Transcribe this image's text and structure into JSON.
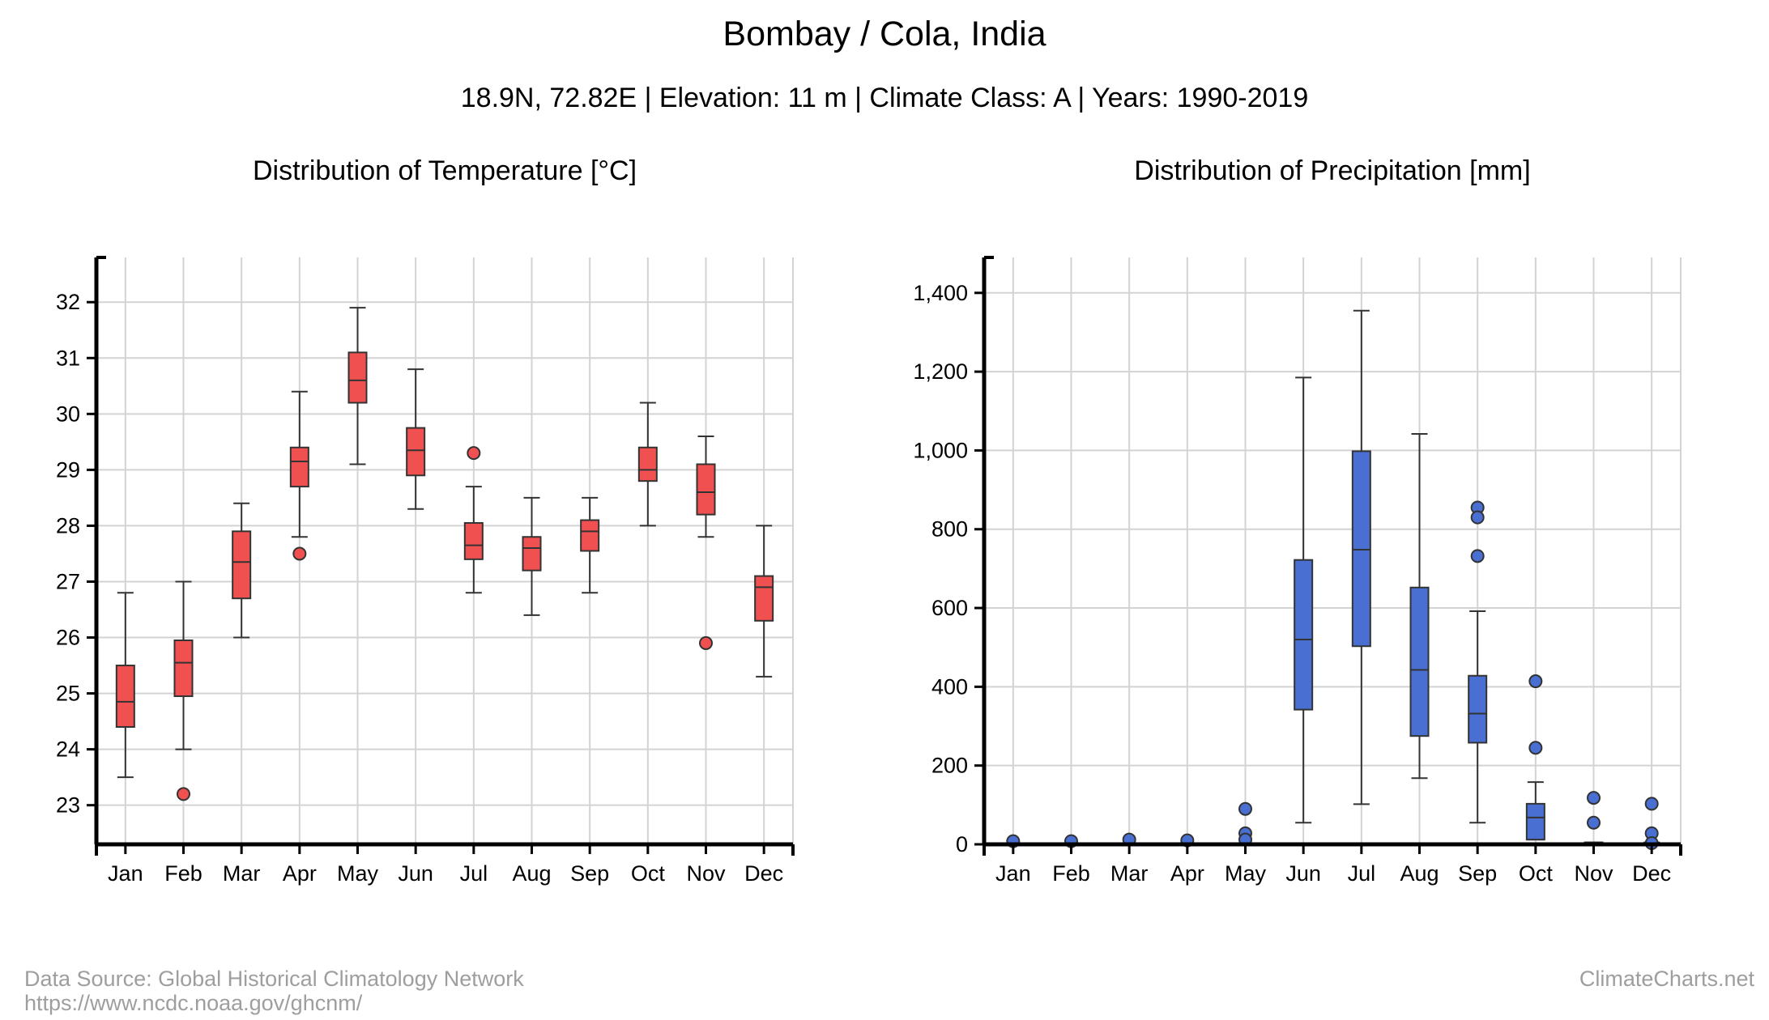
{
  "header": {
    "title": "Bombay / Cola, India",
    "subtitle": "18.9N, 72.82E | Elevation: 11 m | Climate Class: A | Years: 1990-2019"
  },
  "footer": {
    "source_line1": "Data Source: Global Historical Climatology Network",
    "source_line2": "https://www.ncdc.noaa.gov/ghcnm/",
    "brand": "ClimateCharts.net"
  },
  "chart_data": [
    {
      "type": "boxplot",
      "title": "Distribution of Temperature [°C]",
      "categories": [
        "Jan",
        "Feb",
        "Mar",
        "Apr",
        "May",
        "Jun",
        "Jul",
        "Aug",
        "Sep",
        "Oct",
        "Nov",
        "Dec"
      ],
      "ylim": [
        22.3,
        32.8
      ],
      "yticks": [
        23,
        24,
        25,
        26,
        27,
        28,
        29,
        30,
        31,
        32
      ],
      "color": "#f05050",
      "grid": true,
      "boxes": [
        {
          "min": 23.5,
          "q1": 24.4,
          "median": 24.85,
          "q3": 25.5,
          "max": 26.8,
          "outliers": []
        },
        {
          "min": 24.0,
          "q1": 24.95,
          "median": 25.55,
          "q3": 25.95,
          "max": 27.0,
          "outliers": [
            23.2
          ]
        },
        {
          "min": 26.0,
          "q1": 26.7,
          "median": 27.35,
          "q3": 27.9,
          "max": 28.4,
          "outliers": []
        },
        {
          "min": 27.8,
          "q1": 28.7,
          "median": 29.15,
          "q3": 29.4,
          "max": 30.4,
          "outliers": [
            27.5
          ]
        },
        {
          "min": 29.1,
          "q1": 30.2,
          "median": 30.6,
          "q3": 31.1,
          "max": 31.9,
          "outliers": []
        },
        {
          "min": 28.3,
          "q1": 28.9,
          "median": 29.35,
          "q3": 29.75,
          "max": 30.8,
          "outliers": []
        },
        {
          "min": 26.8,
          "q1": 27.4,
          "median": 27.65,
          "q3": 28.05,
          "max": 28.7,
          "outliers": [
            29.3
          ]
        },
        {
          "min": 26.4,
          "q1": 27.2,
          "median": 27.6,
          "q3": 27.8,
          "max": 28.5,
          "outliers": []
        },
        {
          "min": 26.8,
          "q1": 27.55,
          "median": 27.9,
          "q3": 28.1,
          "max": 28.5,
          "outliers": []
        },
        {
          "min": 28.0,
          "q1": 28.8,
          "median": 29.0,
          "q3": 29.4,
          "max": 30.2,
          "outliers": []
        },
        {
          "min": 27.8,
          "q1": 28.2,
          "median": 28.6,
          "q3": 29.1,
          "max": 29.6,
          "outliers": [
            25.9
          ]
        },
        {
          "min": 25.3,
          "q1": 26.3,
          "median": 26.9,
          "q3": 27.1,
          "max": 28.0,
          "outliers": []
        }
      ]
    },
    {
      "type": "boxplot",
      "title": "Distribution of Precipitation [mm]",
      "categories": [
        "Jan",
        "Feb",
        "Mar",
        "Apr",
        "May",
        "Jun",
        "Jul",
        "Aug",
        "Sep",
        "Oct",
        "Nov",
        "Dec"
      ],
      "ylim": [
        0,
        1490
      ],
      "yticks": [
        0,
        200,
        400,
        600,
        800,
        1000,
        1200,
        1400
      ],
      "ytick_labels": [
        "0",
        "200",
        "400",
        "600",
        "800",
        "1,000",
        "1,200",
        "1,400"
      ],
      "color": "#4a6fd3",
      "grid": true,
      "boxes": [
        {
          "min": 0,
          "q1": 0,
          "median": 0,
          "q3": 0,
          "max": 0,
          "outliers": [
            8
          ]
        },
        {
          "min": 0,
          "q1": 0,
          "median": 0,
          "q3": 0,
          "max": 0,
          "outliers": [
            8
          ]
        },
        {
          "min": 0,
          "q1": 0,
          "median": 0,
          "q3": 0,
          "max": 0,
          "outliers": [
            12
          ]
        },
        {
          "min": 0,
          "q1": 0,
          "median": 0,
          "q3": 0,
          "max": 0,
          "outliers": [
            10
          ]
        },
        {
          "min": 0,
          "q1": 0,
          "median": 0,
          "q3": 0,
          "max": 3,
          "outliers": [
            90,
            28,
            12
          ]
        },
        {
          "min": 55,
          "q1": 342,
          "median": 520,
          "q3": 722,
          "max": 1185,
          "outliers": []
        },
        {
          "min": 102,
          "q1": 503,
          "median": 748,
          "q3": 998,
          "max": 1355,
          "outliers": []
        },
        {
          "min": 168,
          "q1": 275,
          "median": 443,
          "q3": 652,
          "max": 1042,
          "outliers": []
        },
        {
          "min": 55,
          "q1": 258,
          "median": 332,
          "q3": 428,
          "max": 592,
          "outliers": [
            855,
            830,
            732
          ]
        },
        {
          "min": 12,
          "q1": 12,
          "median": 68,
          "q3": 103,
          "max": 158,
          "outliers": [
            414,
            245
          ]
        },
        {
          "min": 0,
          "q1": 0,
          "median": 0,
          "q3": 5,
          "max": 5,
          "outliers": [
            118,
            55
          ]
        },
        {
          "min": 0,
          "q1": 0,
          "median": 0,
          "q3": 0,
          "max": 5,
          "outliers": [
            103,
            28,
            3
          ]
        }
      ]
    }
  ]
}
